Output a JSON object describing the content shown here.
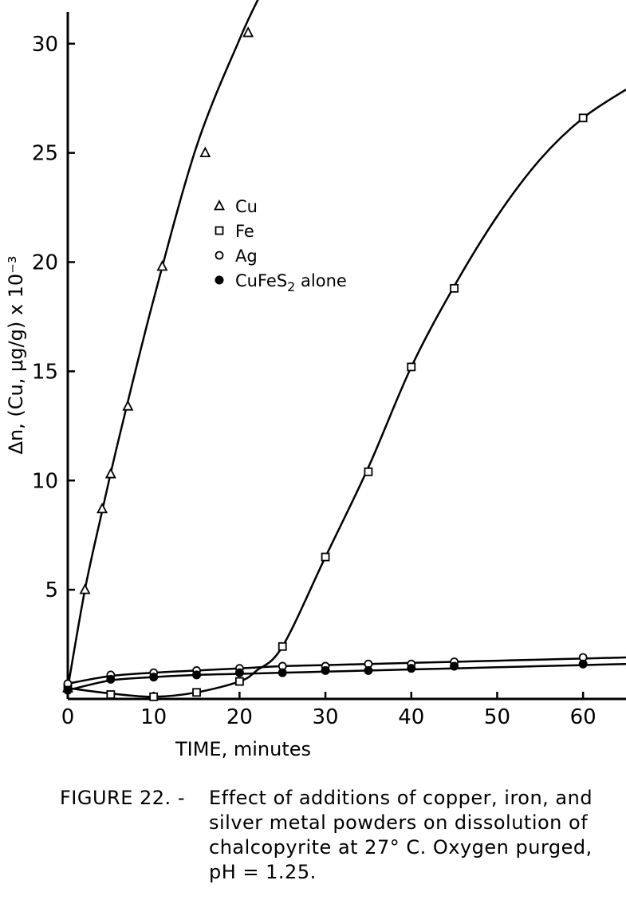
{
  "chart_data": {
    "type": "scatter",
    "xlabel": "TIME, minutes",
    "ylabel": "Δn, (Cu, μg/g) x 10⁻³",
    "xlim": [
      0,
      65
    ],
    "ylim": [
      0,
      32
    ],
    "xticks": [
      0,
      10,
      20,
      30,
      40,
      50,
      60
    ],
    "yticks": [
      5,
      10,
      15,
      20,
      25,
      30
    ],
    "grid": false,
    "legend_position": "upper-left-center",
    "series": [
      {
        "name": "Cu",
        "marker": "triangle",
        "x": [
          0,
          2,
          4,
          5,
          7,
          11,
          16,
          21
        ],
        "y": [
          0.5,
          5.0,
          8.7,
          10.3,
          13.4,
          19.8,
          25.0,
          30.5
        ]
      },
      {
        "name": "Fe",
        "marker": "square",
        "x": [
          0,
          5,
          10,
          15,
          20,
          25,
          30,
          35,
          40,
          45,
          60
        ],
        "y": [
          0.5,
          0.2,
          0.1,
          0.3,
          0.8,
          2.4,
          6.5,
          10.4,
          15.2,
          18.8,
          26.6
        ]
      },
      {
        "name": "Ag",
        "marker": "open-circle",
        "x": [
          0,
          5,
          10,
          15,
          20,
          25,
          30,
          35,
          40,
          45,
          60
        ],
        "y": [
          0.7,
          1.1,
          1.2,
          1.3,
          1.4,
          1.5,
          1.5,
          1.6,
          1.6,
          1.7,
          1.9
        ]
      },
      {
        "name": "CuFeS₂ alone",
        "marker": "filled-circle",
        "x": [
          0,
          5,
          10,
          15,
          20,
          25,
          30,
          35,
          40,
          45,
          60
        ],
        "y": [
          0.4,
          0.9,
          1.0,
          1.1,
          1.2,
          1.2,
          1.3,
          1.3,
          1.4,
          1.5,
          1.6
        ]
      }
    ],
    "curves": {
      "Cu": {
        "x": [
          0,
          2,
          4,
          6,
          10,
          15,
          20,
          22.5
        ],
        "y": [
          0.5,
          5.0,
          8.6,
          12.0,
          18.3,
          25.3,
          30.2,
          32.3
        ]
      },
      "Fe": {
        "x": [
          0,
          5,
          10,
          15,
          20,
          22,
          25,
          30,
          35,
          40,
          45,
          50,
          55,
          60,
          65
        ],
        "y": [
          0.5,
          0.25,
          0.1,
          0.3,
          0.8,
          1.3,
          2.4,
          6.5,
          10.6,
          15.2,
          18.9,
          22.1,
          24.7,
          26.6,
          27.9
        ]
      },
      "Ag": {
        "x": [
          0,
          5,
          10,
          15,
          20,
          25,
          30,
          35,
          40,
          45,
          50,
          55,
          60,
          65
        ],
        "y": [
          0.7,
          1.05,
          1.2,
          1.3,
          1.4,
          1.5,
          1.55,
          1.6,
          1.65,
          1.7,
          1.75,
          1.8,
          1.85,
          1.9
        ]
      },
      "CuFeS₂ alone": {
        "x": [
          0,
          5,
          10,
          15,
          20,
          25,
          30,
          35,
          40,
          45,
          50,
          55,
          60,
          65
        ],
        "y": [
          0.4,
          0.85,
          1.0,
          1.1,
          1.15,
          1.2,
          1.25,
          1.3,
          1.35,
          1.4,
          1.45,
          1.5,
          1.55,
          1.6
        ]
      }
    }
  },
  "caption": {
    "label": "FIGURE 22. -",
    "lines": [
      "Effect of additions of copper, iron, and",
      "silver metal powders on dissolution of",
      "chalcopyrite at 27° C. Oxygen purged,",
      "pH = 1.25."
    ]
  }
}
